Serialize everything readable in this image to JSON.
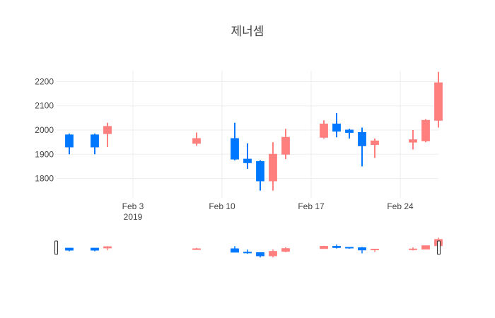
{
  "chart_data": {
    "type": "candlestick",
    "title": "제너셈",
    "increasing_color": "#FF7F7F",
    "decreasing_color": "#0077FF",
    "grid": true,
    "ylim": [
      1720,
      2245
    ],
    "y_ticks": [
      1800,
      1900,
      2000,
      2100,
      2200
    ],
    "x_range": [
      "2019-01-28",
      "2019-02-27"
    ],
    "x_ticks": [
      {
        "date": "2019-02-03",
        "label": "Feb 3",
        "sublabel": "2019"
      },
      {
        "date": "2019-02-10",
        "label": "Feb 10",
        "sublabel": ""
      },
      {
        "date": "2019-02-17",
        "label": "Feb 17",
        "sublabel": ""
      },
      {
        "date": "2019-02-24",
        "label": "Feb 24",
        "sublabel": ""
      }
    ],
    "candles": [
      {
        "date": "2019-01-29",
        "open": 1980,
        "high": 1985,
        "low": 1900,
        "close": 1930
      },
      {
        "date": "2019-01-31",
        "open": 1980,
        "high": 1985,
        "low": 1900,
        "close": 1930
      },
      {
        "date": "2019-02-01",
        "open": 1985,
        "high": 2030,
        "low": 1930,
        "close": 2015
      },
      {
        "date": "2019-02-08",
        "open": 1945,
        "high": 1990,
        "low": 1935,
        "close": 1965
      },
      {
        "date": "2019-02-11",
        "open": 1965,
        "high": 2030,
        "low": 1875,
        "close": 1880
      },
      {
        "date": "2019-02-12",
        "open": 1880,
        "high": 1945,
        "low": 1840,
        "close": 1865
      },
      {
        "date": "2019-02-13",
        "open": 1870,
        "high": 1875,
        "low": 1750,
        "close": 1790
      },
      {
        "date": "2019-02-14",
        "open": 1790,
        "high": 1950,
        "low": 1750,
        "close": 1900
      },
      {
        "date": "2019-02-15",
        "open": 1900,
        "high": 2005,
        "low": 1880,
        "close": 1970
      },
      {
        "date": "2019-02-18",
        "open": 1970,
        "high": 2040,
        "low": 1965,
        "close": 2025
      },
      {
        "date": "2019-02-19",
        "open": 2025,
        "high": 2070,
        "low": 1970,
        "close": 1995
      },
      {
        "date": "2019-02-20",
        "open": 2000,
        "high": 2005,
        "low": 1965,
        "close": 1990
      },
      {
        "date": "2019-02-21",
        "open": 1990,
        "high": 2010,
        "low": 1850,
        "close": 1935
      },
      {
        "date": "2019-02-22",
        "open": 1940,
        "high": 1965,
        "low": 1885,
        "close": 1955
      },
      {
        "date": "2019-02-25",
        "open": 1950,
        "high": 2000,
        "low": 1920,
        "close": 1960
      },
      {
        "date": "2019-02-26",
        "open": 1955,
        "high": 2045,
        "low": 1950,
        "close": 2040
      },
      {
        "date": "2019-02-27",
        "open": 2040,
        "high": 2240,
        "low": 2010,
        "close": 2195
      }
    ]
  }
}
